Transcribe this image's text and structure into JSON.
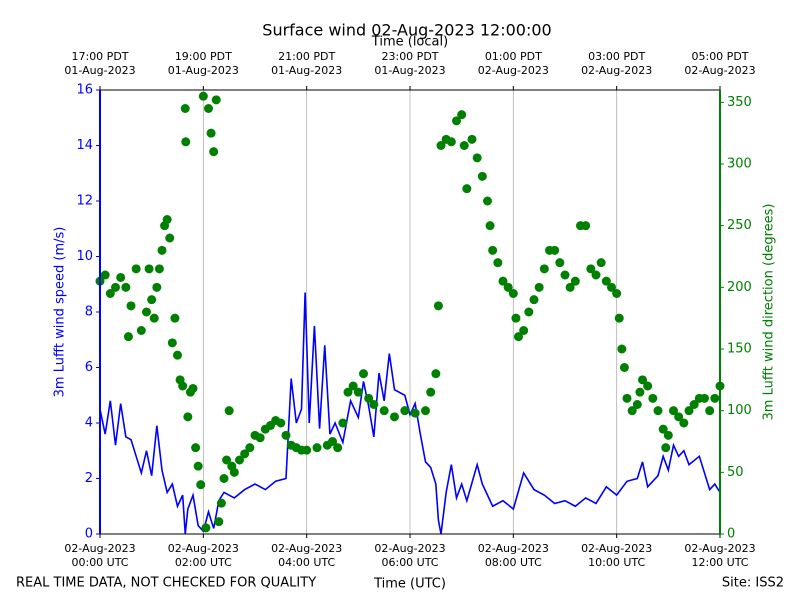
{
  "chart_data": {
    "type": "line",
    "title": "Surface wind 02-Aug-2023 12:00:00",
    "xlabel": "Time (UTC)",
    "x2label": "Time (local)",
    "ylabel": "3m Lufft wind speed (m/s)",
    "y2label": "3m Lufft wind direction (degrees)",
    "footer_left": "REAL TIME DATA, NOT CHECKED FOR QUALITY",
    "footer_right": "Site: ISS2",
    "xlim": [
      0,
      12
    ],
    "xticks": [
      {
        "value": 0,
        "label": "02-Aug-2023\n00:00 UTC"
      },
      {
        "value": 2,
        "label": "02-Aug-2023\n02:00 UTC"
      },
      {
        "value": 4,
        "label": "02-Aug-2023\n04:00 UTC"
      },
      {
        "value": 6,
        "label": "02-Aug-2023\n06:00 UTC"
      },
      {
        "value": 8,
        "label": "02-Aug-2023\n08:00 UTC"
      },
      {
        "value": 10,
        "label": "02-Aug-2023\n10:00 UTC"
      },
      {
        "value": 12,
        "label": "02-Aug-2023\n12:00 UTC"
      }
    ],
    "x2ticks": [
      {
        "value": 0,
        "label": "17:00 PDT\n01-Aug-2023"
      },
      {
        "value": 2,
        "label": "19:00 PDT\n01-Aug-2023"
      },
      {
        "value": 4,
        "label": "21:00 PDT\n01-Aug-2023"
      },
      {
        "value": 6,
        "label": "23:00 PDT\n01-Aug-2023"
      },
      {
        "value": 8,
        "label": "01:00 PDT\n02-Aug-2023"
      },
      {
        "value": 10,
        "label": "03:00 PDT\n02-Aug-2023"
      },
      {
        "value": 12,
        "label": "05:00 PDT\n02-Aug-2023"
      }
    ],
    "ylim": [
      0,
      16
    ],
    "yticks": [
      0,
      2,
      4,
      6,
      8,
      10,
      12,
      14,
      16
    ],
    "y2lim": [
      0,
      360
    ],
    "y2ticks": [
      0,
      50,
      100,
      150,
      200,
      250,
      300,
      350
    ],
    "grid": "x",
    "series": [
      {
        "type": "line",
        "color": "#0000ff",
        "x": [
          0,
          0.1,
          0.2,
          0.3,
          0.4,
          0.5,
          0.6,
          0.7,
          0.8,
          0.9,
          1.0,
          1.1,
          1.2,
          1.3,
          1.4,
          1.5,
          1.6,
          1.65,
          1.7,
          1.8,
          1.9,
          2.0,
          2.1,
          2.2,
          2.3,
          2.4,
          2.6,
          2.8,
          3.0,
          3.2,
          3.4,
          3.6,
          3.7,
          3.8,
          3.9,
          3.97,
          4.05,
          4.15,
          4.25,
          4.35,
          4.45,
          4.55,
          4.7,
          4.85,
          5.0,
          5.1,
          5.2,
          5.3,
          5.4,
          5.5,
          5.6,
          5.7,
          5.9,
          6.0,
          6.1,
          6.2,
          6.3,
          6.4,
          6.5,
          6.55,
          6.6,
          6.7,
          6.8,
          6.9,
          7.0,
          7.1,
          7.3,
          7.4,
          7.5,
          7.6,
          7.8,
          8.0,
          8.2,
          8.4,
          8.6,
          8.8,
          9.0,
          9.2,
          9.4,
          9.6,
          9.8,
          10.0,
          10.2,
          10.4,
          10.5,
          10.6,
          10.8,
          10.9,
          11.0,
          11.1,
          11.2,
          11.3,
          11.4,
          11.6,
          11.8,
          11.9,
          12.0
        ],
        "values": [
          4.5,
          3.6,
          4.8,
          3.2,
          4.7,
          3.5,
          3.4,
          2.8,
          2.2,
          3.0,
          2.1,
          3.9,
          2.3,
          1.5,
          1.8,
          1.0,
          1.4,
          0.0,
          0.9,
          1.4,
          0.3,
          0.1,
          0.8,
          0.2,
          1.2,
          1.5,
          1.3,
          1.6,
          1.8,
          1.6,
          1.9,
          2.0,
          5.6,
          4.0,
          4.5,
          8.7,
          4.0,
          7.5,
          3.8,
          6.8,
          3.6,
          4.0,
          3.3,
          4.8,
          4.2,
          5.5,
          4.6,
          3.5,
          5.8,
          4.8,
          6.5,
          5.2,
          5.0,
          4.3,
          4.7,
          3.6,
          2.6,
          2.4,
          1.8,
          0.5,
          0.0,
          1.5,
          2.5,
          1.3,
          1.8,
          1.2,
          2.5,
          1.8,
          1.4,
          1.0,
          1.2,
          0.9,
          2.2,
          1.6,
          1.4,
          1.1,
          1.2,
          1.0,
          1.3,
          1.1,
          1.7,
          1.4,
          1.9,
          2.0,
          2.6,
          1.7,
          2.1,
          2.8,
          2.3,
          3.2,
          2.8,
          3.0,
          2.5,
          2.8,
          1.6,
          1.8,
          1.5
        ]
      },
      {
        "type": "scatter",
        "color": "#008000",
        "axis": "y2",
        "x": [
          0.0,
          0.1,
          0.2,
          0.3,
          0.4,
          0.5,
          0.55,
          0.6,
          0.7,
          0.8,
          0.9,
          0.95,
          1.0,
          1.05,
          1.1,
          1.15,
          1.2,
          1.25,
          1.3,
          1.35,
          1.4,
          1.45,
          1.5,
          1.55,
          1.6,
          1.65,
          1.66,
          1.7,
          1.75,
          1.8,
          1.85,
          1.9,
          1.95,
          2.0,
          2.05,
          2.1,
          2.15,
          2.2,
          2.25,
          2.3,
          2.35,
          2.4,
          2.45,
          2.5,
          2.55,
          2.6,
          2.7,
          2.8,
          2.9,
          3.0,
          3.1,
          3.2,
          3.3,
          3.4,
          3.5,
          3.6,
          3.7,
          3.8,
          3.9,
          4.0,
          4.2,
          4.4,
          4.5,
          4.6,
          4.7,
          4.8,
          4.9,
          5.0,
          5.1,
          5.2,
          5.3,
          5.5,
          5.7,
          5.9,
          6.1,
          6.3,
          6.4,
          6.5,
          6.55,
          6.6,
          6.7,
          6.8,
          6.9,
          7.0,
          7.05,
          7.1,
          7.2,
          7.3,
          7.4,
          7.5,
          7.55,
          7.6,
          7.7,
          7.8,
          7.9,
          8.0,
          8.05,
          8.1,
          8.2,
          8.3,
          8.4,
          8.5,
          8.6,
          8.7,
          8.8,
          8.9,
          9.0,
          9.1,
          9.2,
          9.3,
          9.4,
          9.5,
          9.6,
          9.7,
          9.8,
          9.9,
          10.0,
          10.05,
          10.1,
          10.15,
          10.2,
          10.3,
          10.4,
          10.45,
          10.5,
          10.6,
          10.7,
          10.8,
          10.9,
          10.95,
          11.0,
          11.1,
          11.2,
          11.3,
          11.4,
          11.5,
          11.6,
          11.7,
          11.8,
          11.9,
          12.0
        ],
        "values": [
          205,
          210,
          195,
          200,
          208,
          200,
          160,
          185,
          215,
          165,
          180,
          215,
          190,
          175,
          200,
          215,
          230,
          250,
          255,
          240,
          155,
          175,
          145,
          125,
          120,
          345,
          318,
          95,
          115,
          118,
          70,
          55,
          40,
          355,
          5,
          345,
          325,
          310,
          352,
          10,
          25,
          45,
          60,
          100,
          55,
          50,
          60,
          65,
          70,
          80,
          78,
          85,
          88,
          92,
          90,
          80,
          72,
          70,
          68,
          68,
          70,
          72,
          75,
          70,
          90,
          115,
          120,
          115,
          130,
          110,
          105,
          100,
          95,
          100,
          98,
          100,
          115,
          130,
          185,
          315,
          320,
          318,
          335,
          340,
          315,
          280,
          320,
          305,
          290,
          270,
          250,
          230,
          220,
          205,
          200,
          195,
          175,
          160,
          165,
          180,
          190,
          200,
          215,
          230,
          230,
          220,
          210,
          200,
          205,
          250,
          250,
          215,
          210,
          220,
          205,
          200,
          195,
          175,
          150,
          135,
          110,
          100,
          105,
          115,
          125,
          120,
          110,
          100,
          85,
          70,
          80,
          100,
          95,
          90,
          100,
          105,
          110,
          110,
          100,
          110,
          120
        ]
      }
    ]
  }
}
